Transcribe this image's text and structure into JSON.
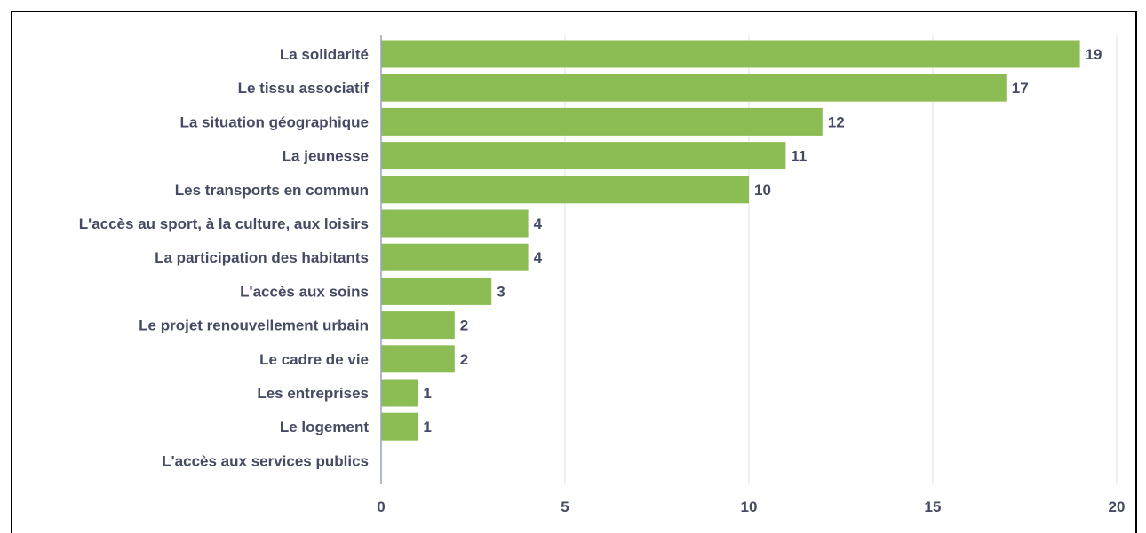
{
  "chart_data": {
    "type": "bar",
    "orientation": "horizontal",
    "title": "",
    "xlabel": "",
    "ylabel": "",
    "categories": [
      "La solidarité",
      "Le tissu associatif",
      "La situation géographique",
      "La jeunesse",
      "Les transports en commun",
      "L'accès au sport, à la culture, aux loisirs",
      "La participation des habitants",
      "L'accès aux soins",
      "Le projet renouvellement urbain",
      "Le cadre de vie",
      "Les entreprises",
      "Le logement",
      "L'accès aux services publics"
    ],
    "values": [
      19,
      17,
      12,
      11,
      10,
      4,
      4,
      3,
      2,
      2,
      1,
      1,
      0
    ],
    "value_labels": [
      "19",
      "17",
      "12",
      "11",
      "10",
      "4",
      "4",
      "3",
      "2",
      "2",
      "1",
      "1",
      ""
    ],
    "xlim": [
      0,
      20
    ],
    "xticks": [
      0,
      5,
      10,
      15,
      20
    ],
    "xtick_labels": [
      "0",
      "5",
      "10",
      "15",
      "20"
    ],
    "grid": "vertical",
    "legend": "none",
    "colors": {
      "bar": "#8bbd54",
      "text": "#444b63",
      "grid": "#e2e2e2",
      "axis": "#9aa4c0"
    }
  }
}
